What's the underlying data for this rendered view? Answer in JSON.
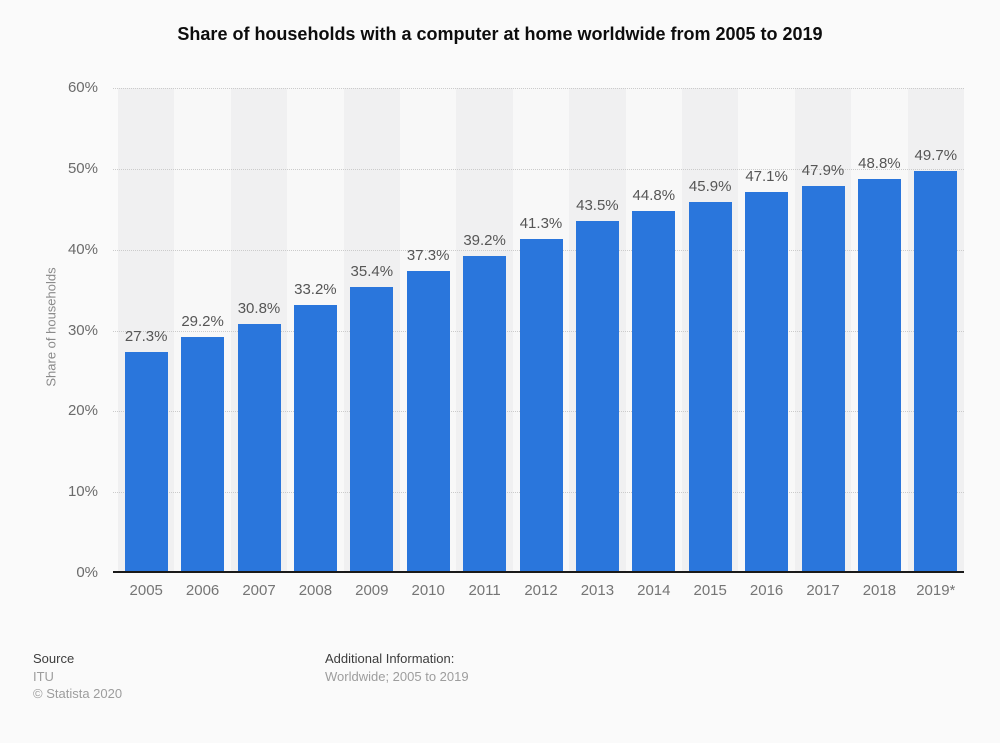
{
  "title": "Share of households with a computer at home worldwide from 2005 to 2019",
  "chart_data": {
    "type": "bar",
    "title": "Share of households with a computer at home worldwide from 2005 to 2019",
    "categories": [
      "2005",
      "2006",
      "2007",
      "2008",
      "2009",
      "2010",
      "2011",
      "2012",
      "2013",
      "2014",
      "2015",
      "2016",
      "2017",
      "2018",
      "2019*"
    ],
    "values": [
      27.3,
      29.2,
      30.8,
      33.2,
      35.4,
      37.3,
      39.2,
      41.3,
      43.5,
      44.8,
      45.9,
      47.1,
      47.9,
      48.8,
      49.7
    ],
    "value_labels": [
      "27.3%",
      "29.2%",
      "30.8%",
      "33.2%",
      "35.4%",
      "37.3%",
      "39.2%",
      "41.3%",
      "43.5%",
      "44.8%",
      "45.9%",
      "47.1%",
      "47.9%",
      "48.8%",
      "49.7%"
    ],
    "xlabel": "",
    "ylabel": "Share of households",
    "ylim": [
      0,
      60
    ],
    "ytick_step": 10,
    "ytick_suffix": "%",
    "grid": "horizontal-dotted",
    "legend": "none",
    "colors": {
      "bar": "#2a76dc",
      "stripe_odd": "#f0f0f1",
      "stripe_even": "#f8f8f8",
      "gridline": "#cbcbcb",
      "axis_line": "#1a1a1a",
      "background": "#fafafa"
    }
  },
  "footer": {
    "source_label": "Source",
    "source_name": "ITU",
    "copyright": "© Statista 2020",
    "additional_label": "Additional Information:",
    "additional_value": "Worldwide; 2005 to 2019"
  }
}
